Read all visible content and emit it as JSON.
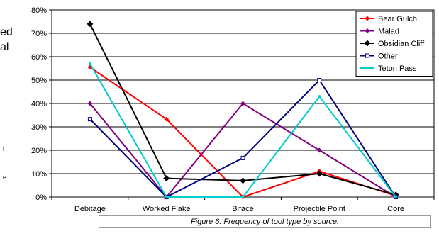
{
  "page": {
    "side_fragment_1": "ed",
    "side_fragment_2": "al",
    "side_fragment_3": "l",
    "side_fragment_4": "e"
  },
  "caption": "Figure 6.  Frequency of tool type by source.",
  "chart_data": {
    "type": "line",
    "title": "",
    "xlabel": "",
    "ylabel": "",
    "categories": [
      "Debitage",
      "Worked Flake",
      "Biface",
      "Projectile Point",
      "Core"
    ],
    "ylim": [
      0,
      80
    ],
    "yticks": [
      "0%",
      "10%",
      "20%",
      "30%",
      "40%",
      "50%",
      "60%",
      "70%",
      "80%"
    ],
    "grid": "horizontal",
    "legend_position": "top-right",
    "series": [
      {
        "name": "Bear Gulch",
        "color": "#ff0000",
        "marker": "diamond-small",
        "values": [
          55.5,
          33.3,
          0,
          11,
          0.5
        ]
      },
      {
        "name": "Malad",
        "color": "#800080",
        "marker": "diamond-small",
        "values": [
          40,
          0,
          40,
          20,
          0
        ]
      },
      {
        "name": "Obsidian Cliff",
        "color": "#000000",
        "marker": "diamond",
        "values": [
          74,
          8,
          7,
          10,
          1
        ]
      },
      {
        "name": "Other",
        "color": "#000080",
        "marker": "square-open",
        "values": [
          33.3,
          0,
          16.7,
          50,
          0
        ]
      },
      {
        "name": "Teton Pass",
        "color": "#00cccc",
        "marker": "none",
        "values": [
          57,
          0,
          0,
          43,
          0
        ]
      }
    ]
  }
}
